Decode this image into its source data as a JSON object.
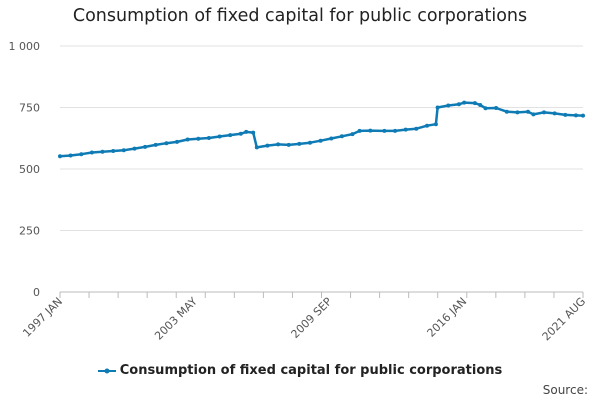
{
  "chart_data": {
    "type": "line",
    "title": "Consumption of fixed capital for public corporations",
    "x_tick_labels": [
      "1997 JAN",
      "2003 MAY",
      "2009 SEP",
      "2016 JAN",
      "2021 AUG"
    ],
    "y_tick_labels": [
      "0",
      "250",
      "500",
      "750",
      "1 000"
    ],
    "ylim": [
      0,
      1000
    ],
    "y_ticks": [
      0,
      250,
      500,
      750,
      1000
    ],
    "x_range": [
      "1997-01",
      "2021-08"
    ],
    "grid": "horizontal",
    "legend_position": "bottom",
    "color": "#0f7bb5",
    "series": [
      {
        "name": "Consumption of fixed capital for public corporations",
        "points": [
          [
            "1997-01",
            552
          ],
          [
            "1997-07",
            555
          ],
          [
            "1998-01",
            560
          ],
          [
            "1998-07",
            567
          ],
          [
            "1999-01",
            570
          ],
          [
            "1999-07",
            573
          ],
          [
            "2000-01",
            576
          ],
          [
            "2000-07",
            583
          ],
          [
            "2001-01",
            590
          ],
          [
            "2001-07",
            598
          ],
          [
            "2002-01",
            605
          ],
          [
            "2002-07",
            610
          ],
          [
            "2003-01",
            620
          ],
          [
            "2003-07",
            623
          ],
          [
            "2004-01",
            626
          ],
          [
            "2004-07",
            632
          ],
          [
            "2005-01",
            638
          ],
          [
            "2005-07",
            643
          ],
          [
            "2005-10",
            651
          ],
          [
            "2006-02",
            648
          ],
          [
            "2006-04",
            588
          ],
          [
            "2006-10",
            595
          ],
          [
            "2007-04",
            600
          ],
          [
            "2007-10",
            598
          ],
          [
            "2008-04",
            602
          ],
          [
            "2008-10",
            607
          ],
          [
            "2009-04",
            615
          ],
          [
            "2009-10",
            624
          ],
          [
            "2010-04",
            633
          ],
          [
            "2010-10",
            642
          ],
          [
            "2011-02",
            655
          ],
          [
            "2011-08",
            656
          ],
          [
            "2012-04",
            655
          ],
          [
            "2012-10",
            655
          ],
          [
            "2013-04",
            660
          ],
          [
            "2013-10",
            664
          ],
          [
            "2014-04",
            676
          ],
          [
            "2014-09",
            682
          ],
          [
            "2014-10",
            750
          ],
          [
            "2015-04",
            758
          ],
          [
            "2015-10",
            763
          ],
          [
            "2016-01",
            770
          ],
          [
            "2016-07",
            768
          ],
          [
            "2016-10",
            760
          ],
          [
            "2017-01",
            747
          ],
          [
            "2017-07",
            748
          ],
          [
            "2018-01",
            733
          ],
          [
            "2018-07",
            730
          ],
          [
            "2019-01",
            733
          ],
          [
            "2019-04",
            722
          ],
          [
            "2019-10",
            730
          ],
          [
            "2020-04",
            726
          ],
          [
            "2020-10",
            720
          ],
          [
            "2021-04",
            718
          ],
          [
            "2021-08",
            717
          ]
        ]
      }
    ]
  },
  "source_label": "Source:"
}
